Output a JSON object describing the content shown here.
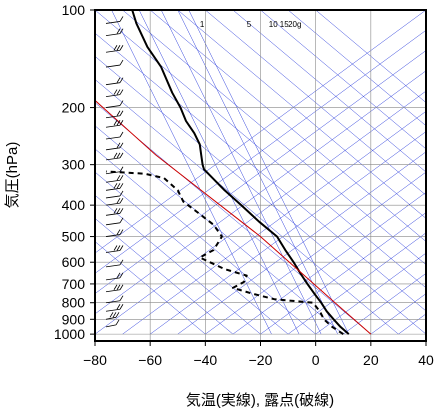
{
  "chart_data": {
    "type": "line",
    "title": "",
    "xlabel": "気温(実線), 露点(破線)",
    "ylabel": "気圧(hPa)",
    "x_ticks": [
      "−80",
      "−60",
      "−40",
      "−20",
      "0",
      "20",
      "40"
    ],
    "x_tick_values": [
      -80,
      -60,
      -40,
      -20,
      0,
      20,
      40
    ],
    "xlim": [
      -80,
      40
    ],
    "y_ticks": [
      "100",
      "200",
      "300",
      "400",
      "500",
      "600",
      "700",
      "800",
      "900",
      "1000"
    ],
    "y_tick_values": [
      100,
      200,
      300,
      400,
      500,
      600,
      700,
      800,
      900,
      1000
    ],
    "ylim": [
      1050,
      100
    ],
    "y_scale": "log",
    "mixing_ratio_labels": [
      "1",
      "5",
      "10",
      "15",
      "20g"
    ],
    "series": [
      {
        "name": "",
        "style": "solid",
        "color": "#000000",
        "points": [
          [
            12.0,
            1000
          ],
          [
            9.0,
            950
          ],
          [
            6.5,
            900
          ],
          [
            4.0,
            850
          ],
          [
            2.0,
            800
          ],
          [
            -0.5,
            750
          ],
          [
            -3.0,
            700
          ],
          [
            -5.5,
            650
          ],
          [
            -8.0,
            600
          ],
          [
            -11.0,
            550
          ],
          [
            -14.0,
            500
          ],
          [
            -20.5,
            450
          ],
          [
            -27.0,
            400
          ],
          [
            -33.0,
            360
          ],
          [
            -40.5,
            310
          ],
          [
            -41.0,
            300
          ],
          [
            -41.5,
            280
          ],
          [
            -42.0,
            260
          ],
          [
            -44.0,
            240
          ],
          [
            -47.0,
            220
          ],
          [
            -49.0,
            200
          ],
          [
            -52.0,
            180
          ],
          [
            -56.0,
            150
          ],
          [
            -61.0,
            130
          ],
          [
            -65.0,
            110
          ],
          [
            -66.5,
            100
          ]
        ]
      },
      {
        "name": "",
        "style": "dashed",
        "color": "#000000",
        "points": [
          [
            10.0,
            1000
          ],
          [
            6.0,
            950
          ],
          [
            3.0,
            900
          ],
          [
            1.5,
            850
          ],
          [
            -1.0,
            800
          ],
          [
            -15.0,
            780
          ],
          [
            -23.0,
            750
          ],
          [
            -30.0,
            720
          ],
          [
            -26.0,
            690
          ],
          [
            -25.0,
            660
          ],
          [
            -33.0,
            630
          ],
          [
            -42.0,
            580
          ],
          [
            -37.0,
            550
          ],
          [
            -34.0,
            500
          ],
          [
            -37.0,
            460
          ],
          [
            -43.0,
            420
          ],
          [
            -48.0,
            390
          ],
          [
            -50.0,
            360
          ],
          [
            -55.0,
            330
          ],
          [
            -62.0,
            320
          ],
          [
            -76.0,
            315
          ]
        ]
      },
      {
        "name": "",
        "style": "solid",
        "color": "#cc0000",
        "points": [
          [
            20.0,
            1000
          ],
          [
            7.0,
            800
          ],
          [
            -20.0,
            500
          ],
          [
            -58.0,
            280
          ],
          [
            -80.0,
            190
          ]
        ]
      }
    ],
    "wind_barbs_shown": true,
    "grid": true
  }
}
